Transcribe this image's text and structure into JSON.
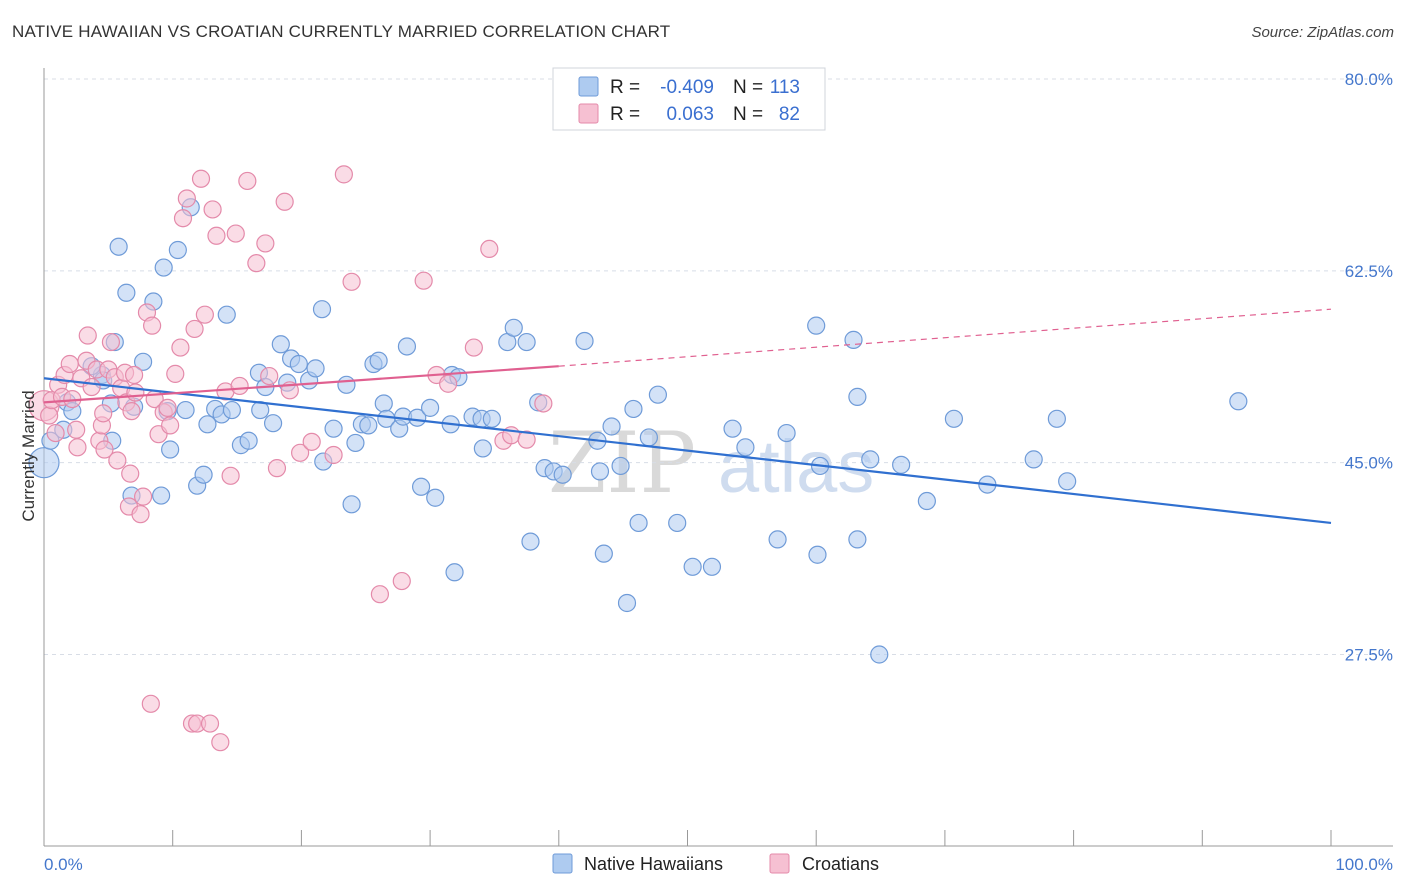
{
  "header": {
    "title": "NATIVE HAWAIIAN VS CROATIAN CURRENTLY MARRIED CORRELATION CHART",
    "source": "Source: ZipAtlas.com"
  },
  "legend_top": {
    "rows": [
      {
        "r_label": "R =",
        "r_value": "-0.409",
        "n_label": "N =",
        "n_value": "113"
      },
      {
        "r_label": "R =",
        "r_value": "0.063",
        "n_label": "N =",
        "n_value": "82"
      }
    ]
  },
  "legend_bottom": {
    "items": [
      "Native Hawaiians",
      "Croatians"
    ]
  },
  "watermark": {
    "zip": "ZIP",
    "atlas": "atlas"
  },
  "colors": {
    "blue_fill": "#aecbf0",
    "blue_stroke": "#6f9bd8",
    "blue_line": "#3070d0",
    "pink_fill": "#f6c0d2",
    "pink_stroke": "#e48aaa",
    "pink_line": "#e06090",
    "axis_text": "#4477cc",
    "grid": "#d8dde6"
  },
  "chart_data": {
    "type": "scatter",
    "title": "NATIVE HAWAIIAN VS CROATIAN CURRENTLY MARRIED CORRELATION CHART",
    "xlabel": "",
    "ylabel": "Currently Married",
    "xlim": [
      0,
      100
    ],
    "ylim": [
      10,
      84
    ],
    "x_tick_labels": [
      "0.0%",
      "100.0%"
    ],
    "y_ticks": [
      27.5,
      45.0,
      62.5,
      80.0
    ],
    "y_tick_labels": [
      "27.5%",
      "45.0%",
      "62.5%",
      "80.0%"
    ],
    "grid": "horizontal dashed",
    "legend_placement": "top-center and bottom-center",
    "series": [
      {
        "name": "Native Hawaiians",
        "R": -0.409,
        "N": 113,
        "trend": {
          "x": [
            0,
            100
          ],
          "y": [
            52.7,
            39.5
          ],
          "style": "solid"
        },
        "points": [
          [
            0,
            45.0
          ],
          [
            0.5,
            47.0
          ],
          [
            1.5,
            48.0
          ],
          [
            1.8,
            50.5
          ],
          [
            2.2,
            49.7
          ],
          [
            4.5,
            53.0
          ],
          [
            4.6,
            52.5
          ],
          [
            3.7,
            53.8
          ],
          [
            5.2,
            50.4
          ],
          [
            5.3,
            47.0
          ],
          [
            5.5,
            56.0
          ],
          [
            5.8,
            64.7
          ],
          [
            6.4,
            60.5
          ],
          [
            6.8,
            42.0
          ],
          [
            7.0,
            50.1
          ],
          [
            7.7,
            54.2
          ],
          [
            8.5,
            59.7
          ],
          [
            9.1,
            42.0
          ],
          [
            9.3,
            62.8
          ],
          [
            9.8,
            46.2
          ],
          [
            9.6,
            49.7
          ],
          [
            10.4,
            64.4
          ],
          [
            11.0,
            49.8
          ],
          [
            11.4,
            68.3
          ],
          [
            11.9,
            42.9
          ],
          [
            12.4,
            43.9
          ],
          [
            12.7,
            48.5
          ],
          [
            13.3,
            49.9
          ],
          [
            13.8,
            49.4
          ],
          [
            14.2,
            58.5
          ],
          [
            14.6,
            49.8
          ],
          [
            15.3,
            46.6
          ],
          [
            15.9,
            47.0
          ],
          [
            16.8,
            49.8
          ],
          [
            16.7,
            53.2
          ],
          [
            17.2,
            51.9
          ],
          [
            17.8,
            48.6
          ],
          [
            18.4,
            55.8
          ],
          [
            18.9,
            52.3
          ],
          [
            19.2,
            54.5
          ],
          [
            19.8,
            54.0
          ],
          [
            20.6,
            52.5
          ],
          [
            21.1,
            53.6
          ],
          [
            21.6,
            59.0
          ],
          [
            21.7,
            45.1
          ],
          [
            22.5,
            48.1
          ],
          [
            23.5,
            52.1
          ],
          [
            23.9,
            41.2
          ],
          [
            24.2,
            46.8
          ],
          [
            24.7,
            48.5
          ],
          [
            25.2,
            48.4
          ],
          [
            25.6,
            54.0
          ],
          [
            26.0,
            54.3
          ],
          [
            26.4,
            50.4
          ],
          [
            26.6,
            49.0
          ],
          [
            27.6,
            48.1
          ],
          [
            27.9,
            49.2
          ],
          [
            28.2,
            55.6
          ],
          [
            29.0,
            49.1
          ],
          [
            29.3,
            42.8
          ],
          [
            30.0,
            50.0
          ],
          [
            30.4,
            41.8
          ],
          [
            31.6,
            48.5
          ],
          [
            31.7,
            53.0
          ],
          [
            31.9,
            35.0
          ],
          [
            32.2,
            52.8
          ],
          [
            33.3,
            49.2
          ],
          [
            34.0,
            49.0
          ],
          [
            34.1,
            46.3
          ],
          [
            34.8,
            49.0
          ],
          [
            36.0,
            56.0
          ],
          [
            36.5,
            57.3
          ],
          [
            37.5,
            56.0
          ],
          [
            37.8,
            37.8
          ],
          [
            38.4,
            50.5
          ],
          [
            38.9,
            44.5
          ],
          [
            39.6,
            44.2
          ],
          [
            40.3,
            43.9
          ],
          [
            42.0,
            56.1
          ],
          [
            43.0,
            47.0
          ],
          [
            43.2,
            44.2
          ],
          [
            43.5,
            36.7
          ],
          [
            44.1,
            48.3
          ],
          [
            44.8,
            44.7
          ],
          [
            45.3,
            32.2
          ],
          [
            45.8,
            49.9
          ],
          [
            46.2,
            39.5
          ],
          [
            47.0,
            47.3
          ],
          [
            47.7,
            51.2
          ],
          [
            49.2,
            39.5
          ],
          [
            50.4,
            35.5
          ],
          [
            51.9,
            35.5
          ],
          [
            53.5,
            48.1
          ],
          [
            54.5,
            46.4
          ],
          [
            57.0,
            38.0
          ],
          [
            57.7,
            47.7
          ],
          [
            60.1,
            36.6
          ],
          [
            60.0,
            57.5
          ],
          [
            60.3,
            44.7
          ],
          [
            63.2,
            38.0
          ],
          [
            62.9,
            56.2
          ],
          [
            63.2,
            51.0
          ],
          [
            64.2,
            45.3
          ],
          [
            64.9,
            27.5
          ],
          [
            66.6,
            44.8
          ],
          [
            68.6,
            41.5
          ],
          [
            70.7,
            49.0
          ],
          [
            73.3,
            43.0
          ],
          [
            76.9,
            45.3
          ],
          [
            78.7,
            49.0
          ],
          [
            79.5,
            43.3
          ],
          [
            92.8,
            50.6
          ]
        ]
      },
      {
        "name": "Croatians",
        "R": 0.063,
        "N": 82,
        "trend": {
          "x": [
            0,
            40
          ],
          "y": [
            50.5,
            53.8
          ],
          "style": "solid",
          "extension": {
            "x": [
              40,
              100
            ],
            "y": [
              53.8,
              59.0
            ],
            "style": "dashed"
          }
        },
        "points": [
          [
            0,
            50.2
          ],
          [
            0.4,
            49.3
          ],
          [
            0.6,
            50.7
          ],
          [
            0.9,
            47.7
          ],
          [
            1.1,
            52.1
          ],
          [
            1.4,
            51.0
          ],
          [
            1.6,
            53.0
          ],
          [
            2.0,
            54.0
          ],
          [
            2.2,
            50.8
          ],
          [
            2.5,
            48.0
          ],
          [
            2.6,
            46.4
          ],
          [
            2.9,
            52.7
          ],
          [
            3.3,
            54.3
          ],
          [
            3.4,
            56.6
          ],
          [
            3.7,
            51.9
          ],
          [
            4.1,
            53.5
          ],
          [
            4.3,
            47.0
          ],
          [
            4.5,
            48.4
          ],
          [
            4.6,
            49.5
          ],
          [
            4.7,
            46.2
          ],
          [
            5.0,
            53.5
          ],
          [
            5.2,
            56.0
          ],
          [
            5.5,
            52.8
          ],
          [
            5.7,
            45.2
          ],
          [
            6.0,
            51.8
          ],
          [
            6.3,
            53.2
          ],
          [
            6.4,
            50.5
          ],
          [
            6.6,
            41.0
          ],
          [
            6.7,
            44.0
          ],
          [
            6.8,
            49.7
          ],
          [
            7.0,
            53.0
          ],
          [
            7.1,
            51.4
          ],
          [
            7.5,
            40.3
          ],
          [
            7.7,
            41.9
          ],
          [
            8.0,
            58.7
          ],
          [
            8.3,
            23.0
          ],
          [
            8.4,
            57.5
          ],
          [
            8.6,
            50.8
          ],
          [
            8.9,
            47.6
          ],
          [
            9.3,
            49.6
          ],
          [
            9.6,
            50.0
          ],
          [
            9.8,
            48.4
          ],
          [
            10.2,
            53.1
          ],
          [
            10.6,
            55.5
          ],
          [
            10.8,
            67.3
          ],
          [
            11.1,
            69.1
          ],
          [
            11.5,
            21.2
          ],
          [
            11.7,
            57.2
          ],
          [
            11.9,
            21.2
          ],
          [
            12.2,
            70.9
          ],
          [
            12.5,
            58.5
          ],
          [
            12.9,
            21.2
          ],
          [
            13.1,
            68.1
          ],
          [
            13.4,
            65.7
          ],
          [
            13.7,
            19.5
          ],
          [
            14.1,
            51.5
          ],
          [
            14.5,
            43.8
          ],
          [
            14.9,
            65.9
          ],
          [
            15.2,
            52.0
          ],
          [
            15.8,
            70.7
          ],
          [
            16.5,
            63.2
          ],
          [
            17.2,
            65.0
          ],
          [
            17.5,
            52.9
          ],
          [
            18.1,
            44.5
          ],
          [
            18.7,
            68.8
          ],
          [
            19.1,
            51.6
          ],
          [
            19.9,
            45.9
          ],
          [
            20.8,
            46.9
          ],
          [
            22.5,
            45.7
          ],
          [
            23.3,
            71.3
          ],
          [
            23.9,
            61.5
          ],
          [
            26.1,
            33.0
          ],
          [
            27.8,
            34.2
          ],
          [
            29.5,
            61.6
          ],
          [
            30.5,
            53.0
          ],
          [
            31.4,
            52.2
          ],
          [
            33.4,
            55.5
          ],
          [
            34.6,
            64.5
          ],
          [
            35.7,
            47.0
          ],
          [
            36.3,
            47.5
          ],
          [
            37.5,
            47.1
          ],
          [
            38.8,
            50.4
          ]
        ]
      }
    ]
  }
}
